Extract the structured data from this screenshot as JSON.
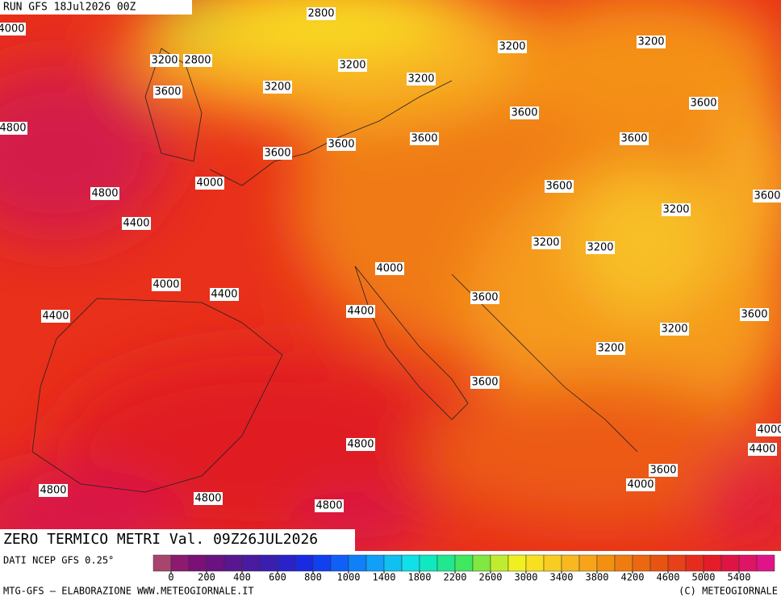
{
  "header": {
    "run": "RUN GFS 18Jul2026 00Z",
    "title": "ZERO TERMICO METRI Val. 09Z26JUL2026"
  },
  "contour_labels": [
    2800,
    4000,
    3200,
    2800,
    3200,
    3200,
    3200,
    3600,
    3200,
    3200,
    3600,
    3600,
    4800,
    3600,
    3600,
    3600,
    3600,
    4000,
    4800,
    3600,
    3600,
    3200,
    4400,
    3200,
    3200,
    4000,
    4000,
    4400,
    3600,
    4400,
    4400,
    3600,
    3200,
    3200,
    3600,
    4000,
    4400,
    4800,
    3600,
    4000,
    4800,
    4800,
    4800
  ],
  "colorbar": {
    "ticks": [
      0,
      200,
      400,
      600,
      800,
      1000,
      1400,
      1800,
      2200,
      2600,
      3000,
      3400,
      3800,
      4200,
      4600,
      5000,
      5400
    ],
    "colors": [
      "#a8456e",
      "#8c1a6e",
      "#7a1078",
      "#6a1282",
      "#5a1690",
      "#4a1aa0",
      "#3a1eb0",
      "#2a22c8",
      "#1a2ae0",
      "#1040f0",
      "#1060f8",
      "#1080f8",
      "#10a0f8",
      "#10c0f0",
      "#10e0e8",
      "#10e8c0",
      "#20e890",
      "#40e860",
      "#80e840",
      "#c0ec30",
      "#f0f020",
      "#f8e020",
      "#f8cc20",
      "#f8b820",
      "#f8a418",
      "#f49010",
      "#f07c10",
      "#ec6810",
      "#e85410",
      "#e84018",
      "#e82c1c",
      "#e41c28",
      "#e01444",
      "#e01464",
      "#e01488"
    ]
  },
  "footer": {
    "source": "DATI NCEP GFS 0.25°",
    "credit": "MTG-GFS — ELABORAZIONE WWW.METEOGIORNALE.IT",
    "copyright": "(C) METEOGIORNALE"
  }
}
